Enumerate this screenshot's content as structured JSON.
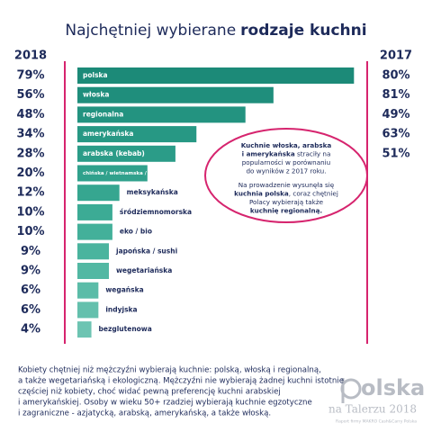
{
  "chart_data": {
    "type": "bar",
    "orientation": "horizontal",
    "title_light": "Najchętniej wybierane",
    "title_bold": "rodzaje kuchni",
    "categories": [
      "polska",
      "włoska",
      "regionalna",
      "amerykańska",
      "arabska (kebab)",
      "chińska / wietnamska / tajska",
      "meksykańska",
      "śródziemnomorska",
      "eko / bio",
      "japońska / sushi",
      "wegetariańska",
      "wegańska",
      "indyjska",
      "bezglutenowa"
    ],
    "series": [
      {
        "name": "2018",
        "values": [
          79,
          56,
          48,
          34,
          28,
          20,
          12,
          10,
          10,
          9,
          9,
          6,
          6,
          4
        ],
        "value_labels": [
          "79%",
          "56%",
          "48%",
          "34%",
          "28%",
          "20%",
          "12%",
          "10%",
          "10%",
          "9%",
          "9%",
          "6%",
          "6%",
          "4%"
        ],
        "colors": [
          "#1c8a78",
          "#1f8e7c",
          "#239380",
          "#279884",
          "#2b9c88",
          "#30a18c",
          "#36a690",
          "#3cab95",
          "#43b09a",
          "#4ab49e",
          "#52b8a3",
          "#5bbca8",
          "#64c0ad",
          "#6dc4b2"
        ]
      },
      {
        "name": "2017",
        "values": [
          80,
          81,
          49,
          63,
          51,
          null,
          null,
          null,
          null,
          null,
          null,
          null,
          null,
          null
        ],
        "value_labels": [
          "80%",
          "81%",
          "49%",
          "63%",
          "51%",
          null,
          null,
          null,
          null,
          null,
          null,
          null,
          null,
          null
        ]
      }
    ],
    "note": [
      [
        {
          "text": "Kuchnie włoska, arabska",
          "bold": true
        }
      ],
      [
        {
          "text": "i amerykańska",
          "bold": true
        },
        {
          "text": " straciły na",
          "bold": false
        }
      ],
      [
        {
          "text": "popularności w porównaniu",
          "bold": false
        }
      ],
      [
        {
          "text": "do wyników z 2017 roku.",
          "bold": false
        }
      ],
      [
        {
          "text": "Na prowadzenie wysunęła się",
          "bold": false
        }
      ],
      [
        {
          "text": "kuchnia polska",
          "bold": true
        },
        {
          "text": ", coraz chętniej",
          "bold": false
        }
      ],
      [
        {
          "text": "Polacy wybierają także",
          "bold": false
        }
      ],
      [
        {
          "text": "kuchnię regionalną.",
          "bold": true
        }
      ]
    ],
    "footer": [
      "Kobiety chętniej niż mężczyźni wybierają kuchnie: polską, włoską i regionalną,",
      "a także wegetariańską i ekologiczną. Mężczyźni nie wybierają żadnej kuchni istotnie",
      "częściej niż kobiety, choć widać pewną preferencję kuchni arabskiej",
      "i amerykańskiej. Osoby w wieku 50+ rzadziej wybierają kuchnie egzotyczne",
      "i zagraniczne - azjatycką, arabską, amerykańską, a także włoską."
    ],
    "logo": {
      "main": "olska",
      "sub": "na Talerzu 2018",
      "source": "Raport firmy MAKRO Cash&Carry Polska"
    }
  }
}
